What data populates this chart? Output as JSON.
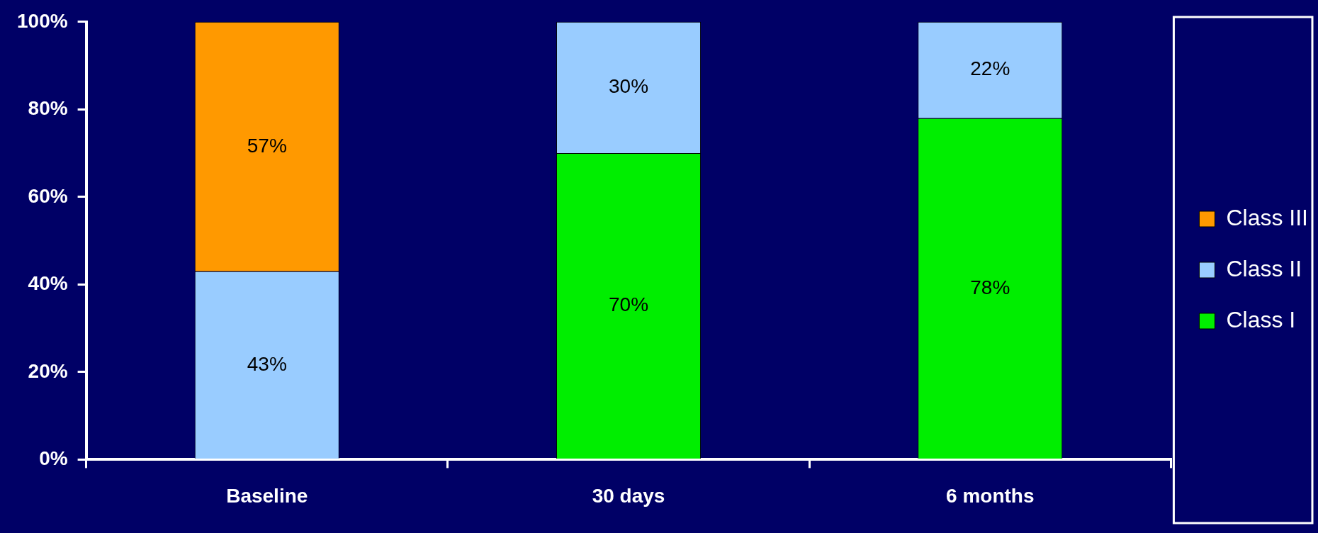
{
  "chart_data": {
    "type": "bar",
    "stacked": true,
    "categories": [
      "Baseline",
      "30 days",
      "6 months"
    ],
    "series": [
      {
        "name": "Class I",
        "color": "#00ee00",
        "values": [
          null,
          70,
          78
        ],
        "value_labels": [
          null,
          "70%",
          "78%"
        ]
      },
      {
        "name": "Class II",
        "color": "#99ccff",
        "values": [
          43,
          30,
          22
        ],
        "value_labels": [
          "43%",
          "30%",
          "22%"
        ]
      },
      {
        "name": "Class III",
        "color": "#ff9900",
        "values": [
          57,
          null,
          null
        ],
        "value_labels": [
          "57%",
          null,
          null
        ]
      }
    ],
    "ylim": [
      0,
      100
    ],
    "yticks": [
      {
        "value": 0,
        "label": "0%"
      },
      {
        "value": 20,
        "label": "20%"
      },
      {
        "value": 40,
        "label": "40%"
      },
      {
        "value": 60,
        "label": "60%"
      },
      {
        "value": 80,
        "label": "80%"
      },
      {
        "value": 100,
        "label": "100%"
      }
    ],
    "grid": false,
    "legend": "right"
  }
}
